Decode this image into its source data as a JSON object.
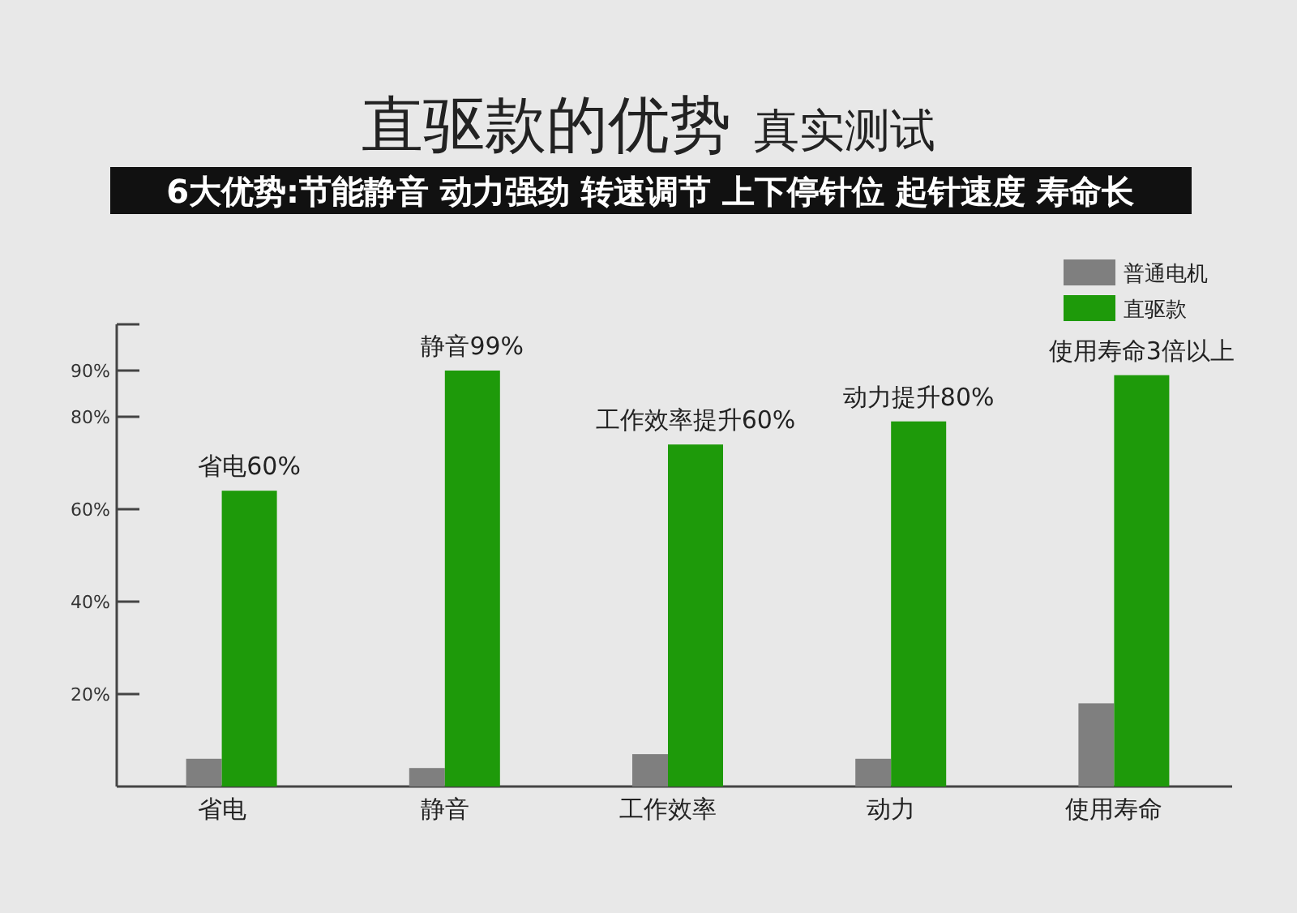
{
  "chart_data": {
    "type": "bar",
    "title": "直驱款的优势",
    "subtitle": "真实测试",
    "annotations": [
      "6大优势:节能静音 动力强劲 转速调节 上下停针位 起针速度 寿命长"
    ],
    "categories": [
      "省电",
      "静音",
      "工作效率",
      "动力",
      "使用寿命"
    ],
    "series": [
      {
        "name": "普通电机",
        "color": "#7f7f7f",
        "values": [
          6,
          4,
          7,
          6,
          18
        ]
      },
      {
        "name": "直驱款",
        "color": "#1e9a0a",
        "values": [
          64,
          90,
          74,
          79,
          89
        ],
        "value_labels": [
          "省电60%",
          "静音99%",
          "工作效率提升60%",
          "动力提升80%",
          "使用寿命3倍以上"
        ]
      }
    ],
    "ylim": [
      0,
      100
    ],
    "yticks": [
      {
        "value": 20,
        "label": "20%"
      },
      {
        "value": 40,
        "label": "40%"
      },
      {
        "value": 60,
        "label": "60%"
      },
      {
        "value": 80,
        "label": "80%"
      },
      {
        "value": 90,
        "label": "90%"
      },
      {
        "value": 100,
        "label": null
      }
    ],
    "legend": "top right"
  }
}
